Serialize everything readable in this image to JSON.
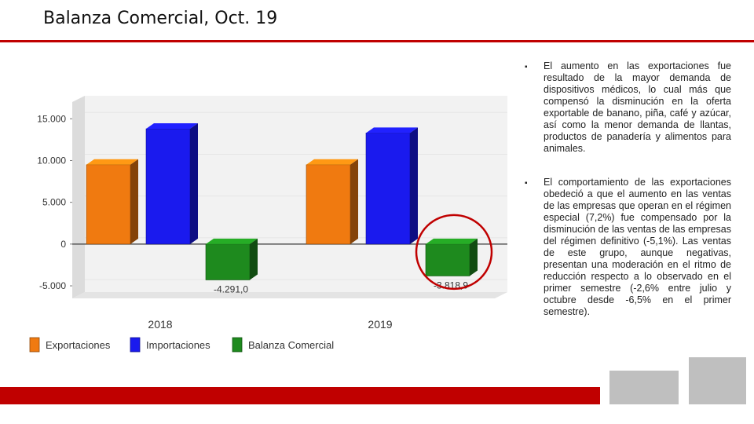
{
  "slide": {
    "title": "Balanza Comercial, Oct. 19",
    "bullets": [
      "El aumento en las exportaciones fue resultado de la mayor demanda de dispositivos médicos, lo cual más que compensó la disminución en la oferta exportable de banano, piña, café y azúcar, así como la menor demanda de llantas, productos de panadería y alimentos para animales.",
      "El comportamiento de las exportaciones obedeció a que el aumento en las ventas de las empresas que operan en el régimen especial (7,2%) fue compensado por la disminución de las ventas de las empresas del régimen definitivo (-5,1%). Las ventas de este grupo, aunque negativas, presentan una moderación en el ritmo de reducción respecto a lo observado en el primer semestre (-2,6% entre julio y octubre desde -6,5% en el primer semestre)."
    ],
    "bullet_marker": "▪"
  },
  "chart_data": {
    "type": "bar",
    "categories": [
      "2018",
      "2019"
    ],
    "series": [
      {
        "name": "Exportaciones",
        "values": [
          9500,
          9500
        ],
        "color": "#f07a10"
      },
      {
        "name": "Importaciones",
        "values": [
          13800,
          13300
        ],
        "color": "#1a1aee"
      },
      {
        "name": "Balanza Comercial",
        "values": [
          -4291.0,
          -3818.9
        ],
        "color": "#1e8a1e"
      }
    ],
    "data_labels": [
      "-4.291,0",
      "-3.818,9"
    ],
    "y_ticks": [
      "15.000",
      "10.000",
      "5.000",
      "0",
      "-5.000"
    ],
    "y_tick_values": [
      15000,
      10000,
      5000,
      0,
      -5000
    ],
    "ylim": [
      -6500,
      17000
    ],
    "legend_position": "bottom-left",
    "highlight": {
      "category": "2019",
      "series": "Balanza Comercial",
      "shape": "circle",
      "color": "#c00000"
    }
  }
}
